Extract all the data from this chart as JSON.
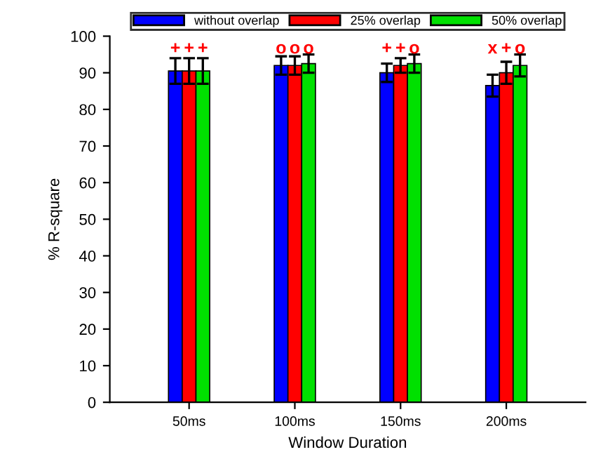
{
  "chart_data": {
    "type": "bar",
    "xlabel": "Window Duration",
    "ylabel": "% R-square",
    "categories": [
      "50ms",
      "100ms",
      "150ms",
      "200ms"
    ],
    "series": [
      {
        "name": "without overlap",
        "color": "#0000ff",
        "values": [
          90.5,
          92,
          90,
          86.5
        ],
        "errors": [
          3.5,
          2.5,
          2.5,
          3
        ],
        "value_labels": [
          "+",
          "o",
          "+",
          "x"
        ]
      },
      {
        "name": "25% overlap",
        "color": "#ff0000",
        "values": [
          90.5,
          92,
          92,
          90
        ],
        "errors": [
          3.5,
          2.5,
          2,
          3
        ],
        "value_labels": [
          "+",
          "o",
          "+",
          "+"
        ]
      },
      {
        "name": "50% overlap",
        "color": "#00e000",
        "values": [
          90.5,
          92.5,
          92.5,
          92
        ],
        "errors": [
          3.5,
          2.5,
          2.5,
          3
        ],
        "value_labels": [
          "+",
          "o",
          "o",
          "o"
        ]
      }
    ],
    "ylim": [
      0,
      100
    ],
    "yticks": [
      0,
      10,
      20,
      30,
      40,
      50,
      60,
      70,
      80,
      90,
      100
    ],
    "grid": false,
    "legend": "top"
  }
}
